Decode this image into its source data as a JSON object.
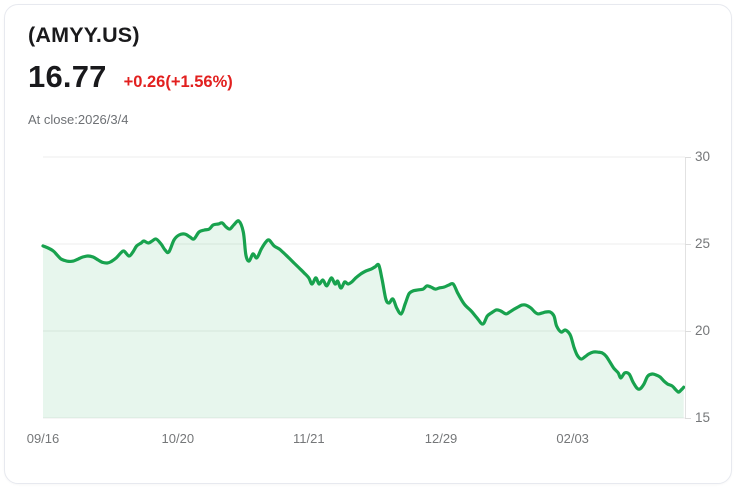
{
  "header": {
    "symbol": "(AMYY.US)",
    "price": "16.77",
    "change": "+0.26(+1.56%)",
    "as_of": "At close:2026/3/4"
  },
  "colors": {
    "change_red": "#e2201f",
    "line_green": "#18a24e",
    "fill_green": "rgba(24,162,78,0.10)",
    "grid": "#ececec",
    "axis": "#e2e2e2",
    "tick_text": "#757779"
  },
  "chart_data": {
    "type": "area",
    "title": "AMYY.US price history (daily close)",
    "xlabel": "",
    "ylabel": "",
    "x_unit": "date (MM/DD)",
    "x_tick_labels": [
      "09/16",
      "10/20",
      "11/21",
      "12/29",
      "02/03"
    ],
    "x_tick_positions": [
      0,
      0.21,
      0.414,
      0.62,
      0.825
    ],
    "y_ticks": [
      30,
      25,
      20,
      15
    ],
    "ylim": [
      15,
      30
    ],
    "grid": true,
    "legend": "none",
    "series": [
      {
        "name": "AMYY.US",
        "points": [
          [
            0.0,
            24.89
          ],
          [
            0.008,
            24.77
          ],
          [
            0.016,
            24.6
          ],
          [
            0.022,
            24.37
          ],
          [
            0.028,
            24.14
          ],
          [
            0.034,
            24.05
          ],
          [
            0.04,
            24.0
          ],
          [
            0.047,
            24.02
          ],
          [
            0.055,
            24.14
          ],
          [
            0.062,
            24.25
          ],
          [
            0.07,
            24.31
          ],
          [
            0.078,
            24.25
          ],
          [
            0.086,
            24.08
          ],
          [
            0.093,
            23.94
          ],
          [
            0.1,
            23.91
          ],
          [
            0.106,
            23.99
          ],
          [
            0.114,
            24.2
          ],
          [
            0.121,
            24.48
          ],
          [
            0.126,
            24.6
          ],
          [
            0.134,
            24.31
          ],
          [
            0.14,
            24.54
          ],
          [
            0.146,
            24.89
          ],
          [
            0.153,
            25.06
          ],
          [
            0.157,
            25.17
          ],
          [
            0.164,
            25.06
          ],
          [
            0.17,
            25.17
          ],
          [
            0.176,
            25.29
          ],
          [
            0.184,
            25.0
          ],
          [
            0.19,
            24.66
          ],
          [
            0.196,
            24.54
          ],
          [
            0.204,
            25.23
          ],
          [
            0.212,
            25.52
          ],
          [
            0.221,
            25.57
          ],
          [
            0.229,
            25.4
          ],
          [
            0.235,
            25.29
          ],
          [
            0.243,
            25.69
          ],
          [
            0.251,
            25.8
          ],
          [
            0.259,
            25.86
          ],
          [
            0.265,
            26.09
          ],
          [
            0.273,
            26.15
          ],
          [
            0.279,
            26.21
          ],
          [
            0.285,
            25.98
          ],
          [
            0.291,
            25.86
          ],
          [
            0.297,
            26.09
          ],
          [
            0.305,
            26.32
          ],
          [
            0.312,
            25.69
          ],
          [
            0.316,
            24.37
          ],
          [
            0.321,
            24.02
          ],
          [
            0.327,
            24.43
          ],
          [
            0.333,
            24.2
          ],
          [
            0.34,
            24.71
          ],
          [
            0.347,
            25.11
          ],
          [
            0.352,
            25.23
          ],
          [
            0.36,
            24.89
          ],
          [
            0.368,
            24.71
          ],
          [
            0.375,
            24.48
          ],
          [
            0.383,
            24.2
          ],
          [
            0.391,
            23.91
          ],
          [
            0.399,
            23.62
          ],
          [
            0.407,
            23.33
          ],
          [
            0.414,
            23.05
          ],
          [
            0.419,
            22.7
          ],
          [
            0.425,
            23.05
          ],
          [
            0.43,
            22.7
          ],
          [
            0.436,
            22.93
          ],
          [
            0.442,
            22.59
          ],
          [
            0.449,
            23.05
          ],
          [
            0.455,
            22.7
          ],
          [
            0.459,
            22.87
          ],
          [
            0.464,
            22.47
          ],
          [
            0.47,
            22.82
          ],
          [
            0.475,
            22.7
          ],
          [
            0.481,
            22.82
          ],
          [
            0.487,
            23.05
          ],
          [
            0.495,
            23.28
          ],
          [
            0.503,
            23.45
          ],
          [
            0.511,
            23.56
          ],
          [
            0.517,
            23.68
          ],
          [
            0.523,
            23.79
          ],
          [
            0.528,
            22.99
          ],
          [
            0.534,
            21.84
          ],
          [
            0.539,
            21.61
          ],
          [
            0.545,
            21.84
          ],
          [
            0.551,
            21.32
          ],
          [
            0.558,
            20.98
          ],
          [
            0.564,
            21.55
          ],
          [
            0.57,
            22.13
          ],
          [
            0.576,
            22.3
          ],
          [
            0.584,
            22.36
          ],
          [
            0.592,
            22.41
          ],
          [
            0.598,
            22.59
          ],
          [
            0.604,
            22.53
          ],
          [
            0.611,
            22.41
          ],
          [
            0.617,
            22.47
          ],
          [
            0.625,
            22.53
          ],
          [
            0.632,
            22.64
          ],
          [
            0.639,
            22.7
          ],
          [
            0.646,
            22.18
          ],
          [
            0.656,
            21.55
          ],
          [
            0.667,
            21.15
          ],
          [
            0.676,
            20.75
          ],
          [
            0.685,
            20.4
          ],
          [
            0.692,
            20.86
          ],
          [
            0.698,
            21.03
          ],
          [
            0.706,
            21.21
          ],
          [
            0.713,
            21.15
          ],
          [
            0.721,
            20.98
          ],
          [
            0.727,
            21.09
          ],
          [
            0.734,
            21.26
          ],
          [
            0.74,
            21.38
          ],
          [
            0.746,
            21.49
          ],
          [
            0.752,
            21.49
          ],
          [
            0.76,
            21.32
          ],
          [
            0.766,
            21.09
          ],
          [
            0.771,
            20.98
          ],
          [
            0.777,
            21.03
          ],
          [
            0.783,
            21.09
          ],
          [
            0.79,
            21.09
          ],
          [
            0.796,
            20.86
          ],
          [
            0.8,
            20.29
          ],
          [
            0.807,
            19.94
          ],
          [
            0.813,
            20.06
          ],
          [
            0.818,
            19.94
          ],
          [
            0.822,
            19.71
          ],
          [
            0.827,
            19.08
          ],
          [
            0.832,
            18.62
          ],
          [
            0.838,
            18.39
          ],
          [
            0.844,
            18.51
          ],
          [
            0.85,
            18.68
          ],
          [
            0.857,
            18.79
          ],
          [
            0.864,
            18.79
          ],
          [
            0.871,
            18.74
          ],
          [
            0.877,
            18.56
          ],
          [
            0.883,
            18.22
          ],
          [
            0.889,
            17.87
          ],
          [
            0.896,
            17.59
          ],
          [
            0.9,
            17.3
          ],
          [
            0.906,
            17.59
          ],
          [
            0.913,
            17.53
          ],
          [
            0.919,
            17.07
          ],
          [
            0.925,
            16.72
          ],
          [
            0.93,
            16.67
          ],
          [
            0.936,
            16.95
          ],
          [
            0.942,
            17.41
          ],
          [
            0.949,
            17.53
          ],
          [
            0.955,
            17.47
          ],
          [
            0.961,
            17.36
          ],
          [
            0.967,
            17.13
          ],
          [
            0.973,
            16.95
          ],
          [
            0.98,
            16.84
          ],
          [
            0.986,
            16.61
          ],
          [
            0.99,
            16.49
          ],
          [
            0.994,
            16.61
          ],
          [
            0.998,
            16.77
          ]
        ]
      }
    ]
  }
}
